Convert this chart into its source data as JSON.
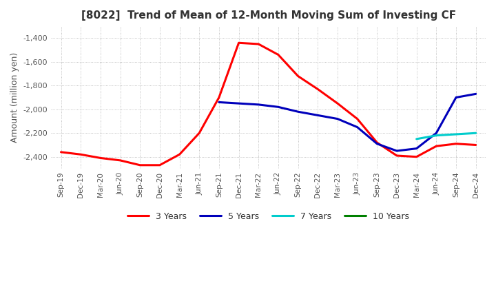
{
  "title": "[8022]  Trend of Mean of 12-Month Moving Sum of Investing CF",
  "ylabel": "Amount (million yen)",
  "ylim": [
    -2500,
    -1300
  ],
  "yticks": [
    -2400,
    -2200,
    -2000,
    -1800,
    -1600,
    -1400
  ],
  "legend_labels": [
    "3 Years",
    "5 Years",
    "7 Years",
    "10 Years"
  ],
  "legend_colors": [
    "#ff0000",
    "#0000bb",
    "#00cccc",
    "#008000"
  ],
  "x_labels": [
    "Sep-19",
    "Dec-19",
    "Mar-20",
    "Jun-20",
    "Sep-20",
    "Dec-20",
    "Mar-21",
    "Jun-21",
    "Sep-21",
    "Dec-21",
    "Mar-22",
    "Jun-22",
    "Sep-22",
    "Dec-22",
    "Mar-23",
    "Jun-23",
    "Sep-23",
    "Dec-23",
    "Mar-24",
    "Jun-24",
    "Sep-24",
    "Dec-24"
  ],
  "series_3y": [
    -2360,
    -2380,
    -2410,
    -2430,
    -2470,
    -2470,
    -2380,
    -2200,
    -1900,
    -1440,
    -1450,
    -1540,
    -1720,
    -1830,
    -1950,
    -2080,
    -2280,
    -2390,
    -2400,
    -2310,
    -2290,
    -2300
  ],
  "series_5y": [
    null,
    null,
    null,
    null,
    null,
    null,
    null,
    null,
    -1940,
    -1950,
    -1960,
    -1980,
    -2020,
    -2050,
    -2080,
    -2150,
    -2290,
    -2350,
    -2330,
    -2200,
    -1900,
    -1870
  ],
  "series_7y": [
    null,
    null,
    null,
    null,
    null,
    null,
    null,
    null,
    null,
    null,
    null,
    null,
    null,
    null,
    null,
    null,
    null,
    null,
    -2250,
    -2220,
    -2210,
    -2200
  ],
  "series_10y": [
    null,
    null,
    null,
    null,
    null,
    null,
    null,
    null,
    null,
    null,
    null,
    null,
    null,
    null,
    null,
    null,
    null,
    null,
    null,
    null,
    null,
    null
  ],
  "background_color": "#ffffff",
  "grid_color": "#b0b0b0"
}
